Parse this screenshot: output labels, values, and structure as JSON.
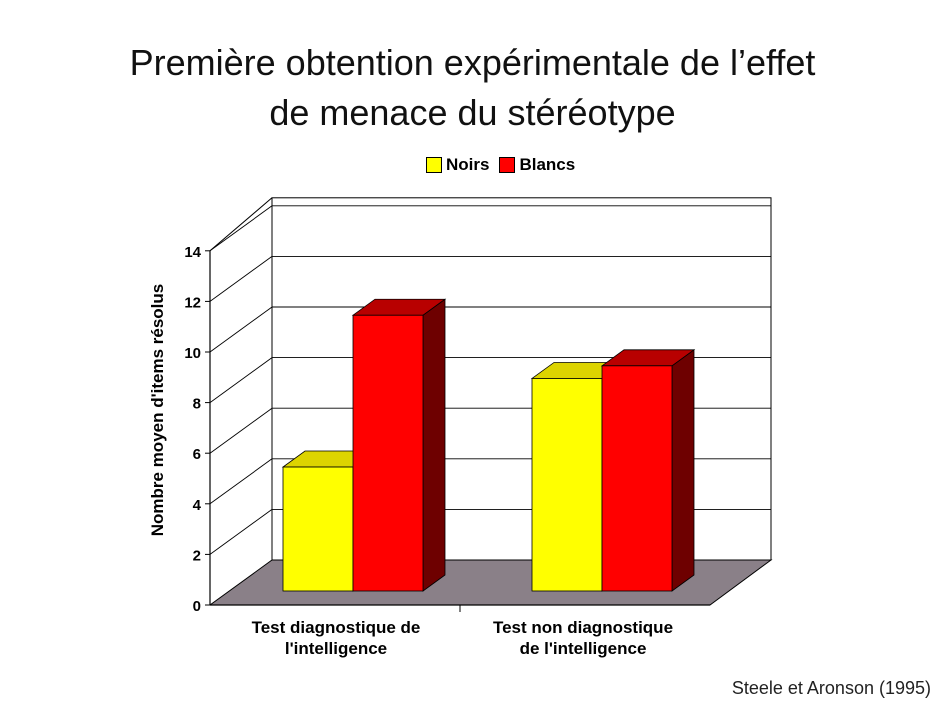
{
  "title_line1": "Première obtention expérimentale de l’effet",
  "title_line2": "de menace du stéréotype",
  "source": "Steele et Aronson (1995)",
  "chart_data": {
    "type": "bar",
    "categories": [
      "Test diagnostique de l'intelligence",
      "Test non diagnostique de l'intelligence"
    ],
    "category_lines": [
      [
        "Test diagnostique de",
        "l'intelligence"
      ],
      [
        "Test non diagnostique",
        "de l'intelligence"
      ]
    ],
    "series": [
      {
        "name": "Noirs",
        "values": [
          4.9,
          8.4
        ],
        "color": "#ffff00"
      },
      {
        "name": "Blancs",
        "values": [
          10.9,
          8.9
        ],
        "color": "#ff0000"
      }
    ],
    "ylabel": "Nombre moyen d'items résolus",
    "xlabel": "",
    "ylim": [
      0,
      14
    ],
    "yticks": [
      0,
      2,
      4,
      6,
      8,
      10,
      12,
      14
    ],
    "grid": true,
    "legend": "top",
    "style": "3d"
  }
}
